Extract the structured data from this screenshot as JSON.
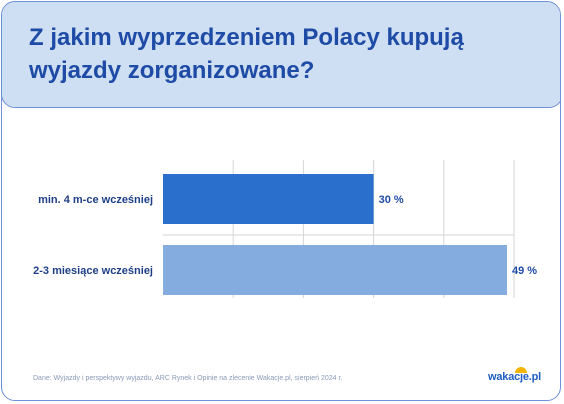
{
  "header": {
    "title": "Z jakim wyprzedzeniem Polacy kupują wyjazdy zorganizowane?"
  },
  "chart_data": {
    "type": "bar",
    "orientation": "horizontal",
    "title": "Z jakim wyprzedzeniem Polacy kupują wyjazdy zorganizowane?",
    "categories": [
      "min. 4 m-ce wcześniej",
      "2-3 miesiące wcześniej"
    ],
    "values": [
      30,
      49
    ],
    "data_labels": [
      "30 %",
      "49 %"
    ],
    "xlim": [
      0,
      50
    ],
    "grid": true,
    "bar_colors": [
      "#2b6fcd",
      "#84acdf"
    ],
    "gridline_color": "#d6d6d6"
  },
  "footer": {
    "source": "Dane: Wyjazdy i perspektywy wyjazdu, ARC Rynek i Opinie na zlecenie Wakacje.pl, sierpień 2024 r.",
    "logo_text": "wakacje.pl"
  },
  "colors": {
    "title": "#1e4ba6",
    "header_bg": "#cfdff3",
    "border": "#6f8fd6",
    "label_text": "#1e3f86",
    "value_text": "#1e4ba6"
  }
}
